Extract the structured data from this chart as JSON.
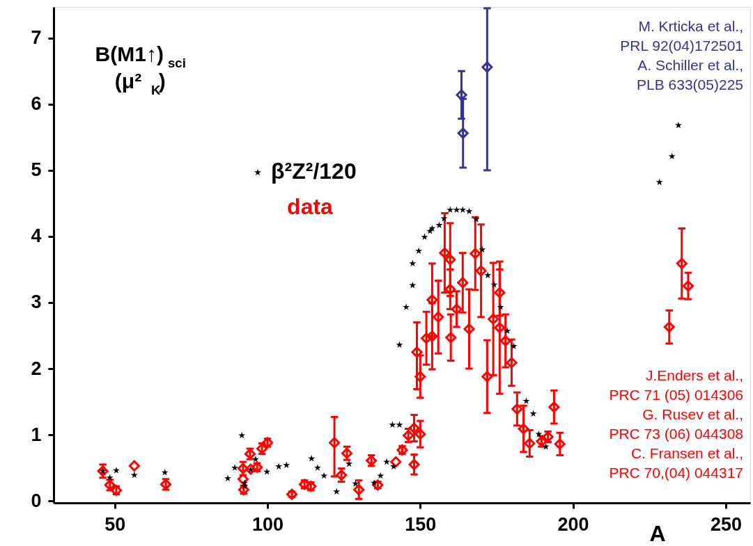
{
  "chart_data": {
    "type": "scatter",
    "xlabel": "A",
    "ylabel": "B(M1↑)$_{sci}$\n(μ²$_{K}$)",
    "xlim": [
      30,
      258
    ],
    "xticks": [
      50,
      100,
      150,
      200,
      250
    ],
    "ylim": [
      -0.03,
      7.47
    ],
    "yticks": [
      0,
      1,
      2,
      3,
      4,
      5,
      6,
      7
    ],
    "grid": false,
    "annotations": [
      "M. Krticka et al.,\nPRL 92(04)172501\nA. Schiller et al.,\nPLB 633(05)225",
      "J.Enders et al.,\nPRC 71 (05) 014306\nG. Rusev et al.,\nPRC 73 (06) 044308\nC. Fransen et al.,\nPRC 70,(04) 044317"
    ],
    "series": [
      {
        "name": "β²Z²/120",
        "color": "#000000",
        "marker": "star",
        "x": [
          46.1,
          48.4,
          50.5,
          56.4,
          66.4,
          87,
          89.3,
          91.6,
          92.5,
          92.5,
          94.5,
          96.1,
          99.8,
          103.7,
          106.2,
          114.4,
          116.4,
          118.5,
          122.6,
          126.7,
          128.8,
          134.9,
          137,
          139,
          140.9,
          141.3,
          143.2,
          143.2,
          145.4,
          147.5,
          147.5,
          149.5,
          151.4,
          153.2,
          153.9,
          156.2,
          157.8,
          159.8,
          161.9,
          163.9,
          166,
          168.3,
          170.3,
          172.1,
          174.2,
          176.3,
          178.5,
          180.6,
          184.7,
          187,
          188.8,
          191.1,
          228.3,
          232.4,
          234.5
        ],
        "values": [
          0.45,
          0.35,
          0.46,
          0.39,
          0.43,
          0.34,
          0.5,
          0.99,
          0.27,
          0.22,
          0.47,
          0.63,
          0.44,
          0.52,
          0.54,
          0.64,
          0.5,
          0.38,
          0.14,
          0.56,
          0.26,
          0.27,
          0.38,
          0.59,
          1.15,
          0.52,
          1.15,
          2.36,
          2.93,
          3.26,
          3.59,
          3.78,
          3.99,
          4.08,
          4.12,
          4.17,
          4.27,
          4.4,
          4.4,
          4.4,
          4.38,
          4.26,
          3.8,
          3.41,
          3.27,
          2.93,
          2.57,
          2.34,
          1.51,
          1.32,
          1.01,
          0.82,
          4.82,
          5.21,
          5.68
        ]
      },
      {
        "name": "data",
        "color": "#ff0000",
        "marker": "diamond",
        "x": [
          46.1,
          48.4,
          50.5,
          56.4,
          66.7,
          92,
          92,
          92.2,
          94.3,
          94.5,
          96.6,
          98.2,
          100,
          108,
          112.1,
          114.2,
          121.9,
          124.2,
          126,
          129.9,
          134,
          136.1,
          142,
          144.1,
          146.1,
          148,
          150,
          148,
          148.9,
          150,
          152,
          153.9,
          153.9,
          155.9,
          158,
          159.8,
          159.8,
          160,
          161.9,
          163.9,
          166,
          168,
          169.9,
          171.9,
          173.9,
          176,
          176,
          177.9,
          179.9,
          181.7,
          183.8,
          185.8,
          189.7,
          191.8,
          193.8,
          195.7,
          231.5,
          235.6,
          237.7
        ],
        "values": [
          0.45,
          0.24,
          0.16,
          0.53,
          0.25,
          0.49,
          0.33,
          0.17,
          0.71,
          0.48,
          0.51,
          0.79,
          0.88,
          0.1,
          0.25,
          0.22,
          0.88,
          0.39,
          0.72,
          0.17,
          0.61,
          0.24,
          0.59,
          0.77,
          0.99,
          1.1,
          1.01,
          0.55,
          2.25,
          1.88,
          2.46,
          2.49,
          3.04,
          2.78,
          3.75,
          3.65,
          3.2,
          2.47,
          2.9,
          3.3,
          2.6,
          3.74,
          3.48,
          1.88,
          2.75,
          2.62,
          3.15,
          2.42,
          2.09,
          1.39,
          1.09,
          0.87,
          0.9,
          0.97,
          1.42,
          0.86,
          2.63,
          3.59,
          3.25
        ],
        "errors": [
          0.1,
          0.08,
          0.06,
          null,
          0.08,
          0.1,
          null,
          0.06,
          0.08,
          null,
          0.06,
          0.08,
          0.06,
          0.04,
          0.06,
          0.06,
          [
            0.37,
            1.27
          ],
          0.1,
          0.1,
          0.14,
          0.08,
          0.05,
          null,
          0.06,
          0.1,
          0.2,
          0.2,
          0.15,
          [
            1.69,
            2.7
          ],
          0.32,
          0.4,
          0.5,
          0.55,
          0.55,
          0.6,
          0.55,
          0.3,
          0.35,
          0.27,
          0.45,
          0.6,
          0.55,
          0.7,
          0.55,
          0.85,
          1.0,
          0.35,
          0.4,
          0.35,
          0.25,
          0.35,
          0.2,
          0.08,
          0.08,
          0.25,
          0.17,
          0.25,
          0.53,
          0.2
        ]
      },
      {
        "color": "#333399",
        "marker": "diamond",
        "x": [
          163.5,
          164,
          171.9
        ],
        "values": [
          6.14,
          5.56,
          6.56
        ],
        "errors": [
          0.36,
          0.52,
          [
            5.0,
            7.45
          ]
        ]
      }
    ]
  }
}
